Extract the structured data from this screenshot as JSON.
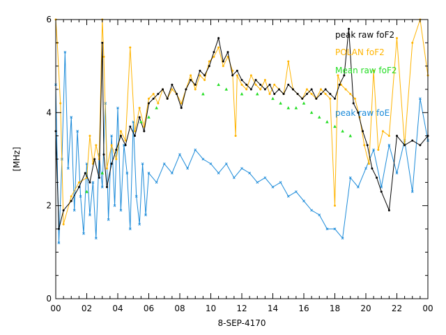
{
  "chart_data": {
    "type": "line",
    "title": "",
    "xlabel": "8-SEP-4170",
    "ylabel": "[MHz]",
    "xlim": [
      0,
      24
    ],
    "ylim": [
      0,
      6
    ],
    "x_tick_labels": [
      "00",
      "02",
      "04",
      "06",
      "08",
      "10",
      "12",
      "14",
      "16",
      "18",
      "20",
      "22",
      "00"
    ],
    "y_tick_labels": [
      "0",
      "2",
      "4",
      "6"
    ],
    "grid": false,
    "legend_position": "top-right",
    "series": [
      {
        "name": "peak raw foF2",
        "color": "#000000",
        "marker": "dot",
        "x": [
          0.0,
          0.2,
          0.5,
          1.0,
          1.5,
          1.9,
          2.2,
          2.5,
          2.8,
          3.0,
          3.1,
          3.3,
          3.6,
          3.9,
          4.2,
          4.5,
          4.8,
          5.1,
          5.4,
          5.7,
          6.0,
          6.3,
          6.6,
          6.9,
          7.2,
          7.5,
          7.8,
          8.1,
          8.4,
          8.7,
          9.0,
          9.3,
          9.6,
          9.9,
          10.2,
          10.5,
          10.8,
          11.1,
          11.4,
          11.7,
          12.0,
          12.3,
          12.6,
          12.9,
          13.2,
          13.5,
          13.8,
          14.1,
          14.4,
          14.7,
          15.0,
          15.3,
          15.6,
          15.9,
          16.2,
          16.5,
          16.8,
          17.1,
          17.4,
          17.7,
          18.0,
          18.3,
          18.6,
          18.9,
          19.2,
          19.5,
          19.8,
          20.1,
          20.4,
          20.7,
          21.0,
          21.5,
          22.0,
          22.5,
          23.0,
          23.5,
          24.0
        ],
        "values": [
          3.6,
          1.5,
          1.9,
          2.1,
          2.4,
          2.7,
          2.5,
          3.0,
          2.6,
          5.5,
          3.1,
          2.4,
          2.9,
          3.2,
          3.5,
          3.3,
          3.7,
          3.5,
          3.9,
          3.6,
          4.2,
          4.3,
          4.4,
          4.5,
          4.3,
          4.6,
          4.4,
          4.1,
          4.5,
          4.7,
          4.6,
          4.9,
          4.8,
          5.0,
          5.3,
          5.6,
          5.1,
          5.3,
          4.8,
          4.9,
          4.7,
          4.6,
          4.5,
          4.7,
          4.6,
          4.5,
          4.6,
          4.4,
          4.5,
          4.4,
          4.6,
          4.5,
          4.4,
          4.3,
          4.4,
          4.5,
          4.3,
          4.4,
          4.5,
          4.4,
          4.3,
          4.6,
          4.8,
          5.8,
          4.2,
          4.0,
          3.6,
          3.3,
          2.8,
          2.6,
          2.3,
          1.9,
          3.5,
          3.3,
          3.4,
          3.3,
          3.5
        ]
      },
      {
        "name": "POLAN foF2",
        "color": "#ffb400",
        "marker": "dot",
        "x": [
          0.0,
          0.1,
          0.3,
          0.5,
          1.0,
          1.5,
          2.0,
          2.2,
          2.4,
          2.6,
          2.8,
          3.0,
          3.1,
          3.3,
          3.6,
          3.9,
          4.2,
          4.5,
          4.8,
          5.1,
          5.4,
          5.7,
          6.0,
          6.3,
          6.6,
          6.9,
          7.2,
          7.5,
          7.8,
          8.1,
          8.4,
          8.7,
          9.0,
          9.3,
          9.6,
          9.9,
          10.2,
          10.5,
          10.8,
          11.1,
          11.4,
          11.6,
          11.7,
          12.0,
          12.3,
          12.6,
          12.9,
          13.2,
          13.5,
          13.8,
          14.1,
          14.4,
          14.7,
          15.0,
          15.3,
          15.6,
          15.9,
          16.2,
          16.5,
          16.8,
          17.1,
          17.4,
          17.7,
          18.0,
          18.2,
          18.4,
          18.7,
          19.0,
          19.3,
          19.6,
          19.9,
          20.2,
          20.5,
          20.8,
          21.1,
          21.5,
          22.0,
          22.5,
          23.0,
          23.5,
          24.0
        ],
        "values": [
          6.0,
          5.5,
          4.2,
          1.6,
          2.2,
          2.5,
          2.6,
          3.5,
          2.9,
          3.3,
          3.0,
          6.0,
          5.2,
          2.8,
          3.3,
          3.0,
          3.6,
          3.4,
          5.4,
          3.6,
          4.1,
          3.7,
          4.3,
          4.4,
          4.2,
          4.5,
          4.3,
          4.5,
          4.4,
          4.2,
          4.5,
          4.8,
          4.5,
          4.8,
          4.7,
          5.1,
          5.2,
          5.4,
          5.0,
          5.2,
          4.9,
          3.5,
          4.8,
          4.6,
          4.5,
          4.8,
          4.6,
          4.5,
          4.7,
          4.4,
          4.6,
          4.5,
          4.4,
          5.1,
          4.5,
          4.4,
          4.3,
          4.5,
          4.4,
          4.3,
          4.5,
          4.4,
          4.3,
          2.0,
          4.8,
          4.6,
          4.5,
          4.4,
          4.3,
          3.9,
          3.3,
          2.9,
          4.9,
          3.2,
          3.6,
          3.5,
          5.6,
          3.3,
          5.5,
          6.0,
          4.8
        ]
      },
      {
        "name": "Mean raw foF2",
        "color": "#22dd22",
        "marker": "triangle",
        "x": [
          2.0,
          3.0,
          5.5,
          6.0,
          6.5,
          9.5,
          10.5,
          11.0,
          12.0,
          13.0,
          14.0,
          14.5,
          15.0,
          15.5,
          16.0,
          16.5,
          17.0,
          17.5,
          18.0,
          18.5,
          19.0
        ],
        "values": [
          2.3,
          2.7,
          3.8,
          3.9,
          4.1,
          4.4,
          4.6,
          4.5,
          4.4,
          4.4,
          4.3,
          4.2,
          4.1,
          4.1,
          4.2,
          4.0,
          3.9,
          3.8,
          3.7,
          3.6,
          3.5
        ]
      },
      {
        "name": "peak raw foE",
        "color": "#1a8ad9",
        "marker": "x",
        "x": [
          0.0,
          0.2,
          0.4,
          0.6,
          0.8,
          1.0,
          1.2,
          1.4,
          1.6,
          1.8,
          2.0,
          2.2,
          2.4,
          2.6,
          2.8,
          3.0,
          3.2,
          3.4,
          3.6,
          3.8,
          4.0,
          4.2,
          4.4,
          4.6,
          4.8,
          5.0,
          5.2,
          5.4,
          5.6,
          5.8,
          6.0,
          6.5,
          7.0,
          7.5,
          8.0,
          8.5,
          9.0,
          9.5,
          10.0,
          10.5,
          11.0,
          11.5,
          12.0,
          12.5,
          13.0,
          13.5,
          14.0,
          14.5,
          15.0,
          15.5,
          16.0,
          16.5,
          17.0,
          17.5,
          18.0,
          18.5,
          19.0,
          19.5,
          20.0,
          20.5,
          21.0,
          21.5,
          22.0,
          22.5,
          23.0,
          23.5,
          24.0
        ],
        "values": [
          4.6,
          1.2,
          3.0,
          5.3,
          2.8,
          3.9,
          1.9,
          3.6,
          2.2,
          1.4,
          2.9,
          1.8,
          2.5,
          1.3,
          3.1,
          2.4,
          4.2,
          1.7,
          3.5,
          2.0,
          4.1,
          1.9,
          3.3,
          2.7,
          1.5,
          3.8,
          2.2,
          1.6,
          2.9,
          1.8,
          2.7,
          2.5,
          2.9,
          2.7,
          3.1,
          2.8,
          3.2,
          3.0,
          2.9,
          2.7,
          2.9,
          2.6,
          2.8,
          2.7,
          2.5,
          2.6,
          2.4,
          2.5,
          2.2,
          2.3,
          2.1,
          1.9,
          1.8,
          1.5,
          1.5,
          1.3,
          2.6,
          2.4,
          2.8,
          3.2,
          2.4,
          3.3,
          2.7,
          3.4,
          2.3,
          4.3,
          3.4
        ]
      }
    ]
  }
}
